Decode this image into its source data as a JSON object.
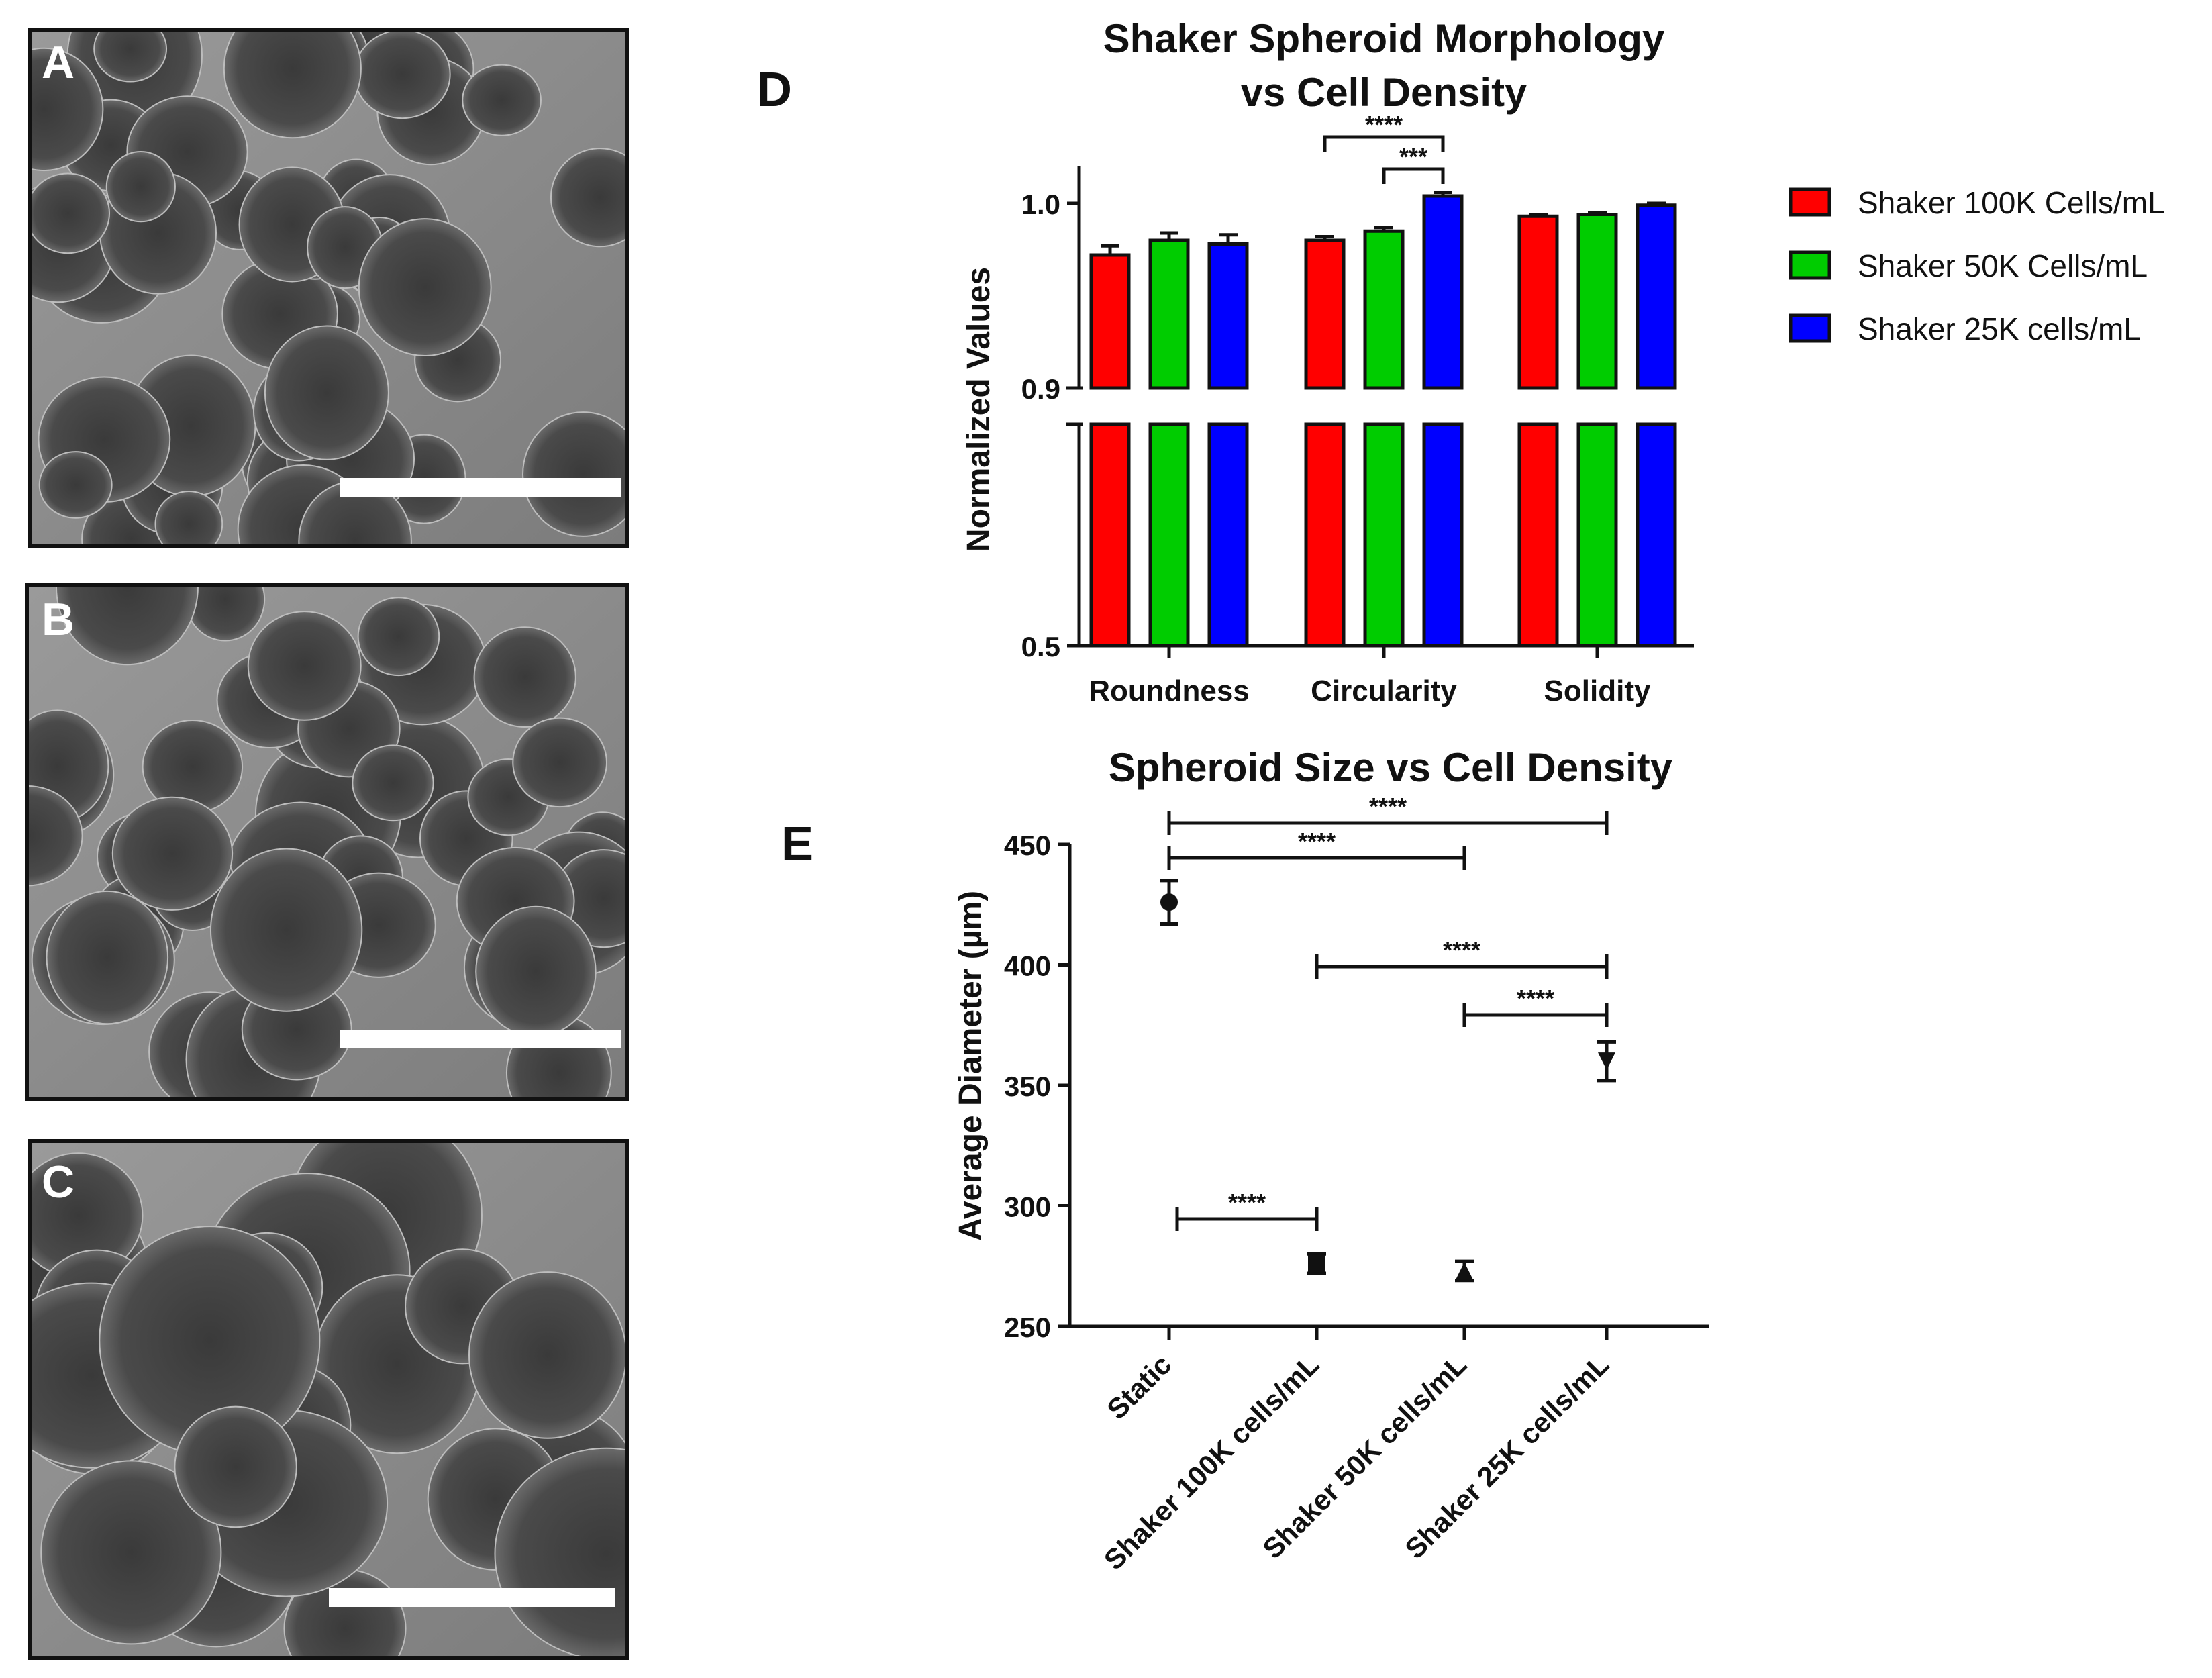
{
  "panels": {
    "a": {
      "label": "A"
    },
    "b": {
      "label": "B"
    },
    "c": {
      "label": "C"
    },
    "d": {
      "label": "D"
    },
    "e": {
      "label": "E"
    }
  },
  "chart_data": [
    {
      "type": "bar",
      "title": "Shaker Spheroid Morphology vs Cell Density",
      "title_lines": [
        "Shaker Spheroid Morphology",
        "vs Cell Density"
      ],
      "xlabel": "",
      "ylabel": "Normalized Values",
      "y_axis_break": [
        0.5,
        0.9
      ],
      "ylim": [
        0.5,
        1.02
      ],
      "y_ticks": [
        "0.5",
        "0.9",
        "1.0"
      ],
      "categories": [
        "Roundness",
        "Circularity",
        "Solidity"
      ],
      "series": [
        {
          "name": "Shaker 100K Cells/mL",
          "color": "#ff0000",
          "values": [
            0.972,
            0.98,
            0.993
          ],
          "errors": [
            0.005,
            0.002,
            0.001
          ]
        },
        {
          "name": "Shaker 50K Cells/mL",
          "color": "#00cc00",
          "values": [
            0.98,
            0.985,
            0.994
          ],
          "errors": [
            0.004,
            0.002,
            0.001
          ]
        },
        {
          "name": "Shaker 25K cells/mL",
          "color": "#0000ff",
          "values": [
            0.978,
            1.004,
            0.999
          ],
          "errors": [
            0.005,
            0.002,
            0.001
          ]
        }
      ],
      "legend_position": "right",
      "significance": [
        {
          "category": "Circularity",
          "from_series": 0,
          "to_series": 2,
          "label": "****"
        },
        {
          "category": "Circularity",
          "from_series": 1,
          "to_series": 2,
          "label": "***"
        }
      ]
    },
    {
      "type": "scatter",
      "title": "Spheroid Size vs Cell Density",
      "xlabel": "",
      "ylabel": "Average Diameter (µm)",
      "ylim": [
        250,
        450
      ],
      "y_ticks": [
        "250",
        "300",
        "350",
        "400",
        "450"
      ],
      "categories": [
        "Static",
        "Shaker 100K cells/mL",
        "Shaker 50K cells/mL",
        "Shaker 25K cells/mL"
      ],
      "points": [
        {
          "category": "Static",
          "value": 426,
          "error": 9,
          "marker": "circle"
        },
        {
          "category": "Shaker 100K cells/mL",
          "value": 276,
          "error": 4,
          "marker": "square"
        },
        {
          "category": "Shaker 50K cells/mL",
          "value": 273,
          "error": 4,
          "marker": "triangle-up"
        },
        {
          "category": "Shaker 25K cells/mL",
          "value": 360,
          "error": 8,
          "marker": "triangle-down"
        }
      ],
      "significance": [
        {
          "from": 0,
          "to": 3,
          "label": "****"
        },
        {
          "from": 0,
          "to": 2,
          "label": "****"
        },
        {
          "from": 1,
          "to": 3,
          "label": "****"
        },
        {
          "from": 2,
          "to": 3,
          "label": "****"
        },
        {
          "from": 0,
          "to": 1,
          "label": "****"
        }
      ]
    }
  ]
}
